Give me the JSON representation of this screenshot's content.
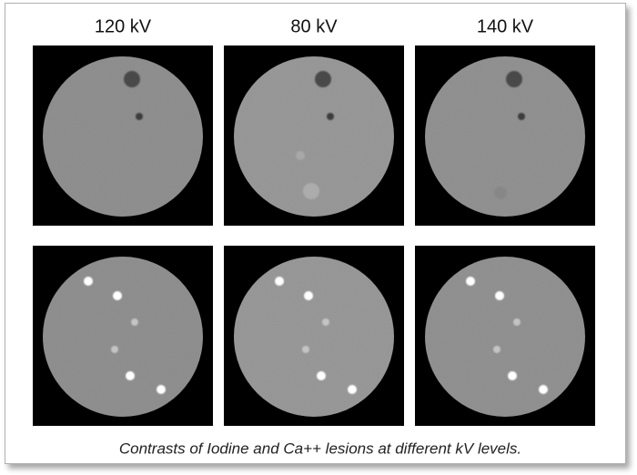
{
  "columns": [
    "120 kV",
    "80 kV",
    "140 kV"
  ],
  "caption": "Contrasts of Iodine and Ca++ lesions at different kV levels."
}
